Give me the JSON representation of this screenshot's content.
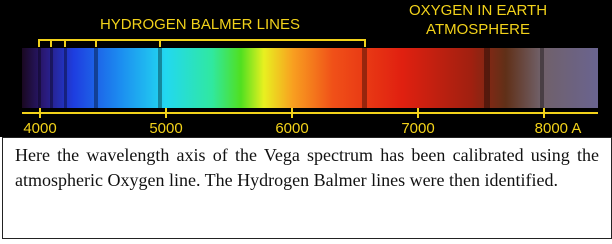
{
  "figure": {
    "hydrogen_label": "HYDROGEN BALMER LINES",
    "oxygen_label": [
      "OXYGEN IN EARTH",
      "ATMOSPHERE"
    ],
    "axis_labels": [
      "4000",
      "5000",
      "6000",
      "7000",
      "8000 A"
    ]
  },
  "caption": "Here the wavelength axis of the Vega spectrum has been calibrated using the atmospheric Oxygen line. The Hydrogen Balmer lines were then identified."
}
